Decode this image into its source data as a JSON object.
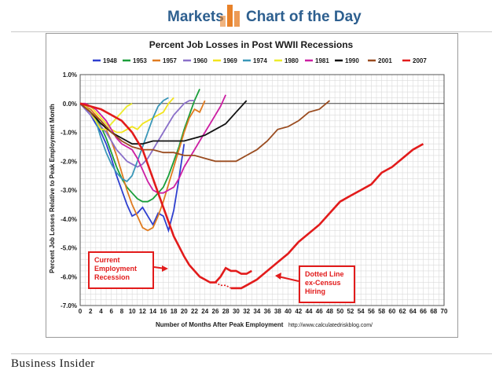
{
  "header": {
    "left": "Markets",
    "right": "Chart of the Day"
  },
  "footer": {
    "brand": "Business Insider"
  },
  "source_text": "http://www.calculatedriskblog.com/",
  "annotations": {
    "current": [
      "Current",
      "Employment",
      "Recession"
    ],
    "dotted": [
      "Dotted Line",
      "ex-Census",
      "Hiring"
    ]
  },
  "chart_data": {
    "type": "line",
    "title": "Percent Job Losses in Post WWII Recessions",
    "xlabel": "Number of Months After Peak Employment",
    "ylabel": "Percent Job Losses Relative to Peak Employment Month",
    "xlim": [
      0,
      70
    ],
    "ylim": [
      -7.0,
      1.0
    ],
    "xticks": [
      0,
      2,
      4,
      6,
      8,
      10,
      12,
      14,
      16,
      18,
      20,
      22,
      24,
      26,
      28,
      30,
      32,
      34,
      36,
      38,
      40,
      42,
      44,
      46,
      48,
      50,
      52,
      54,
      56,
      58,
      60,
      62,
      64,
      66,
      68,
      70
    ],
    "yticks": [
      1.0,
      0.0,
      -1.0,
      -2.0,
      -3.0,
      -4.0,
      -5.0,
      -6.0,
      -7.0
    ],
    "ytick_labels": [
      "1.0%",
      "0.0%",
      "-1.0%",
      "-2.0%",
      "-3.0%",
      "-4.0%",
      "-5.0%",
      "-6.0%",
      "-7.0%"
    ],
    "grid": true,
    "legend_position": "top",
    "series": [
      {
        "name": "1948",
        "color": "#2e3fcf",
        "x": [
          0,
          1,
          2,
          3,
          4,
          5,
          6,
          7,
          8,
          9,
          10,
          11,
          12,
          13,
          14,
          15,
          16,
          17,
          18,
          19,
          20
        ],
        "y": [
          0,
          -0.2,
          -0.4,
          -0.7,
          -1.0,
          -1.4,
          -1.9,
          -2.5,
          -3.0,
          -3.5,
          -3.9,
          -3.8,
          -3.6,
          -3.9,
          -4.2,
          -3.8,
          -3.9,
          -4.4,
          -3.7,
          -2.6,
          -1.4
        ]
      },
      {
        "name": "1953",
        "color": "#1a9e3a",
        "x": [
          0,
          1,
          2,
          3,
          4,
          5,
          6,
          7,
          8,
          9,
          10,
          11,
          12,
          13,
          14,
          15,
          16,
          17,
          18,
          19,
          20,
          21,
          22,
          23
        ],
        "y": [
          0,
          -0.1,
          -0.3,
          -0.5,
          -0.8,
          -1.2,
          -1.7,
          -2.2,
          -2.6,
          -2.9,
          -3.1,
          -3.3,
          -3.4,
          -3.4,
          -3.3,
          -3.1,
          -2.9,
          -2.5,
          -2.0,
          -1.5,
          -0.9,
          -0.4,
          0.1,
          0.5
        ]
      },
      {
        "name": "1957",
        "color": "#e07b20",
        "x": [
          0,
          1,
          2,
          3,
          4,
          5,
          6,
          7,
          8,
          9,
          10,
          11,
          12,
          13,
          14,
          15,
          16,
          17,
          18,
          19,
          20,
          21,
          22,
          23,
          24
        ],
        "y": [
          0,
          -0.1,
          -0.2,
          -0.4,
          -0.6,
          -0.9,
          -1.3,
          -1.8,
          -2.4,
          -3.0,
          -3.5,
          -3.9,
          -4.3,
          -4.4,
          -4.3,
          -3.9,
          -3.4,
          -2.8,
          -2.2,
          -1.6,
          -1.0,
          -0.5,
          -0.2,
          -0.3,
          0.1
        ]
      },
      {
        "name": "1960",
        "color": "#8a70c9",
        "x": [
          0,
          1,
          2,
          3,
          4,
          5,
          6,
          7,
          8,
          9,
          10,
          11,
          12,
          13,
          14,
          15,
          16,
          17,
          18,
          19,
          20,
          21,
          22
        ],
        "y": [
          0,
          -0.2,
          -0.4,
          -0.6,
          -0.8,
          -1.0,
          -1.3,
          -1.6,
          -1.8,
          -2.0,
          -2.1,
          -2.2,
          -2.1,
          -1.9,
          -1.6,
          -1.3,
          -1.0,
          -0.7,
          -0.4,
          -0.2,
          0.0,
          0.1,
          0.1
        ]
      },
      {
        "name": "1969",
        "color": "#f2e41c",
        "x": [
          0,
          1,
          2,
          3,
          4,
          5,
          6,
          7,
          8,
          9,
          10,
          11,
          12,
          13,
          14,
          15,
          16,
          17,
          18
        ],
        "y": [
          0,
          0.0,
          -0.1,
          -0.3,
          -0.5,
          -0.7,
          -0.9,
          -1.0,
          -1.0,
          -0.9,
          -0.8,
          -0.9,
          -0.7,
          -0.6,
          -0.5,
          -0.4,
          -0.3,
          0.0,
          0.2
        ]
      },
      {
        "name": "1974",
        "color": "#3a97b8",
        "x": [
          0,
          1,
          2,
          3,
          4,
          5,
          6,
          7,
          8,
          9,
          10,
          11,
          12,
          13,
          14,
          15,
          16,
          17
        ],
        "y": [
          0,
          -0.1,
          -0.3,
          -0.6,
          -1.2,
          -1.7,
          -2.1,
          -2.4,
          -2.6,
          -2.7,
          -2.5,
          -2.0,
          -1.5,
          -1.0,
          -0.5,
          -0.1,
          0.1,
          0.2
        ]
      },
      {
        "name": "1980",
        "color": "#ecec2c",
        "x": [
          0,
          1,
          2,
          3,
          4,
          5,
          6,
          7,
          8,
          9,
          10
        ],
        "y": [
          0,
          -0.1,
          -0.3,
          -0.6,
          -0.9,
          -0.9,
          -0.7,
          -0.5,
          -0.3,
          -0.1,
          0.0
        ]
      },
      {
        "name": "1981",
        "color": "#cc1fa3",
        "x": [
          0,
          1,
          2,
          3,
          4,
          5,
          6,
          7,
          8,
          9,
          10,
          11,
          12,
          13,
          14,
          15,
          16,
          17,
          18,
          19,
          20,
          21,
          22,
          23,
          24,
          25,
          26,
          27,
          28
        ],
        "y": [
          0,
          0.0,
          -0.1,
          -0.2,
          -0.4,
          -0.6,
          -0.9,
          -1.2,
          -1.4,
          -1.5,
          -1.6,
          -1.9,
          -2.3,
          -2.7,
          -3.0,
          -3.1,
          -3.1,
          -3.0,
          -2.9,
          -2.6,
          -2.2,
          -1.9,
          -1.6,
          -1.3,
          -1.0,
          -0.7,
          -0.4,
          -0.1,
          0.3
        ]
      },
      {
        "name": "1990",
        "color": "#111111",
        "x": [
          0,
          2,
          4,
          6,
          8,
          10,
          12,
          14,
          16,
          18,
          20,
          22,
          24,
          26,
          28,
          30,
          32
        ],
        "y": [
          0,
          -0.3,
          -0.7,
          -1.0,
          -1.2,
          -1.4,
          -1.4,
          -1.3,
          -1.3,
          -1.3,
          -1.3,
          -1.2,
          -1.1,
          -0.9,
          -0.7,
          -0.3,
          0.1
        ]
      },
      {
        "name": "2001",
        "color": "#9a4c20",
        "x": [
          0,
          2,
          4,
          6,
          8,
          10,
          12,
          14,
          16,
          18,
          20,
          22,
          24,
          26,
          28,
          30,
          32,
          34,
          36,
          38,
          40,
          42,
          44,
          46,
          48
        ],
        "y": [
          0,
          -0.3,
          -0.6,
          -1.0,
          -1.3,
          -1.5,
          -1.6,
          -1.6,
          -1.7,
          -1.7,
          -1.8,
          -1.8,
          -1.9,
          -2.0,
          -2.0,
          -2.0,
          -1.8,
          -1.6,
          -1.3,
          -0.9,
          -0.8,
          -0.6,
          -0.3,
          -0.2,
          0.1
        ]
      },
      {
        "name": "2007",
        "color": "#e21b1b",
        "x": [
          0,
          2,
          4,
          6,
          8,
          10,
          12,
          14,
          16,
          18,
          20,
          21,
          22,
          23,
          24,
          25,
          26,
          27,
          28,
          29,
          30,
          31,
          32,
          34,
          36,
          38,
          40,
          42,
          44,
          46,
          48,
          50,
          52,
          54,
          56,
          58,
          60,
          62,
          64,
          66
        ],
        "y": [
          0,
          -0.1,
          -0.2,
          -0.4,
          -0.6,
          -1.0,
          -1.6,
          -2.6,
          -3.6,
          -4.6,
          -5.3,
          -5.6,
          -5.8,
          -6.0,
          -6.1,
          -6.2,
          -6.2,
          -6.3,
          -6.3,
          -6.4,
          -6.4,
          -6.4,
          -6.3,
          -6.1,
          -5.8,
          -5.5,
          -5.2,
          -4.8,
          -4.5,
          -4.2,
          -3.8,
          -3.4,
          -3.2,
          -3.0,
          -2.8,
          -2.4,
          -2.2,
          -1.9,
          -1.6,
          -1.4
        ]
      }
    ]
  }
}
